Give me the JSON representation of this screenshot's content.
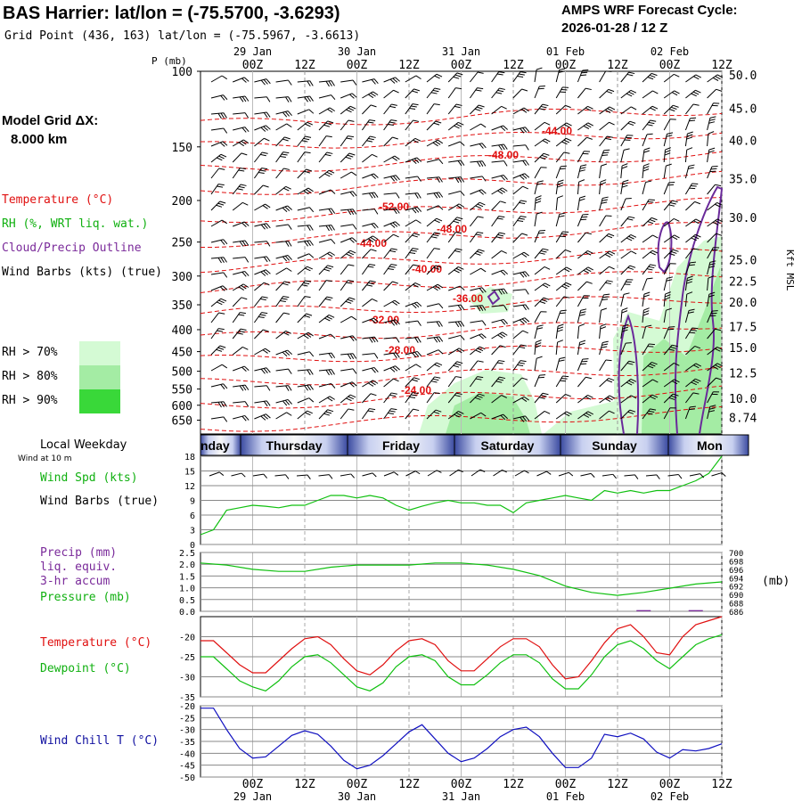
{
  "header": {
    "title": "BAS Harrier:  lat/lon = (-75.5700, -3.6293)",
    "subtitle": "Grid Point (436, 163) lat/lon = (-75.5967, -3.6613)",
    "cycle_line1": "AMPS WRF Forecast Cycle:",
    "cycle_line2": "2026-01-28 / 12  Z"
  },
  "time_axis": {
    "top_dates": [
      "29 Jan",
      "30 Jan",
      "31 Jan",
      "01 Feb",
      "02 Feb"
    ],
    "tick_labels": [
      "00Z",
      "12Z",
      "00Z",
      "12Z",
      "00Z",
      "12Z",
      "00Z",
      "12Z",
      "00Z",
      "12Z"
    ],
    "tick_hours": [
      12,
      24,
      36,
      48,
      60,
      72,
      84,
      96,
      108,
      120
    ],
    "hours_start": 0,
    "hours_end": 120
  },
  "upper_panel": {
    "p_label": "P (mb)",
    "pressure_ticks": [
      "100",
      "150",
      "200",
      "250",
      "300",
      "350",
      "400",
      "450",
      "500",
      "550",
      "600",
      "650"
    ],
    "pressure_values": [
      100,
      150,
      200,
      250,
      300,
      350,
      400,
      450,
      500,
      550,
      600,
      650
    ],
    "height_ticks": [
      "50.0",
      "45.0",
      "40.0",
      "35.0",
      "30.0",
      "25.0",
      "22.5",
      "20.0",
      "17.5",
      "15.0",
      "12.5",
      "10.0",
      "8.74"
    ],
    "height_pressures": [
      102,
      122,
      145,
      178,
      219,
      275,
      308,
      345,
      393,
      440,
      505,
      578,
      640
    ],
    "height_axis_label": "Kft MSL",
    "grid_label": "Model Grid ΔX:",
    "grid_value": "8.000 km",
    "legend_temperature": "Temperature (°C)",
    "legend_rh": "RH (%, WRT liq. wat.)",
    "legend_cloud": "Cloud/Precip Outline",
    "legend_wind": "Wind Barbs (kts) (true)",
    "rh_bins": [
      {
        "label": "RH > 70%",
        "color": "#d4fad4"
      },
      {
        "label": "RH > 80%",
        "color": "#a4eca4"
      },
      {
        "label": "RH > 90%",
        "color": "#39d839"
      }
    ],
    "temperature_labels": [
      "-52.00",
      "-48.00",
      "-48.00",
      "-44.00",
      "-44.00",
      "-40.00",
      "-36.00",
      "-32.00",
      "-28.00",
      "-24.00"
    ]
  },
  "weekday_bar": {
    "label": "Local Weekday",
    "wind_note": "Wind at 10 m",
    "days": [
      "nday",
      "Thursday",
      "Friday",
      "Saturday",
      "Sunday",
      "Mon"
    ]
  },
  "wind_panel": {
    "label1": "Wind Spd (kts)",
    "label2": "Wind Barbs (true)",
    "y_ticks": [
      "18",
      "15",
      "12",
      "9",
      "6",
      "3",
      "0"
    ]
  },
  "precip_panel": {
    "label1": "Precip (mm)",
    "label2": "liq. equiv.",
    "label3": "3-hr accum",
    "label4": "Pressure (mb)",
    "left_ticks": [
      "2.5",
      "2.0",
      "1.5",
      "1.0",
      "0.5",
      "0.0"
    ],
    "right_ticks": [
      "700",
      "698",
      "696",
      "694",
      "692",
      "690",
      "688",
      "686"
    ],
    "right_unit": "(mb)"
  },
  "temp_panel": {
    "label1": "Temperature (°C)",
    "label2": "Dewpoint (°C)",
    "y_ticks": [
      "-20",
      "-25",
      "-30",
      "-35"
    ]
  },
  "chill_panel": {
    "label": "Wind Chill T (°C)",
    "y_ticks": [
      "-20",
      "-25",
      "-30",
      "-35",
      "-40",
      "-45",
      "-50"
    ]
  },
  "colors": {
    "temperature": "#e01010",
    "dewpoint": "#10c010",
    "pressure": "#10c010",
    "wind_speed": "#10c010",
    "wind_chill": "#1010c0",
    "cloud_outline": "#6a2a9a",
    "precip_label": "#7a2a9a"
  },
  "chart_data": [
    {
      "type": "line",
      "title": "Wind Spd (kts)",
      "x_hours": [
        0,
        3,
        6,
        9,
        12,
        15,
        18,
        21,
        24,
        27,
        30,
        33,
        36,
        39,
        42,
        45,
        48,
        51,
        54,
        57,
        60,
        63,
        66,
        69,
        72,
        75,
        78,
        81,
        84,
        87,
        90,
        93,
        96,
        99,
        102,
        105,
        108,
        111,
        114,
        117,
        120
      ],
      "series": [
        {
          "name": "Wind Spd (kts)",
          "values": [
            2,
            3,
            7,
            7.5,
            8,
            7.8,
            7.5,
            8,
            8,
            9,
            10,
            10,
            9.5,
            10,
            9.5,
            8,
            7,
            7.8,
            8.5,
            9,
            8.5,
            8.5,
            8,
            8,
            6.5,
            8.5,
            9,
            9.5,
            10,
            9.5,
            9,
            11,
            10.5,
            11,
            10.5,
            11,
            11,
            12,
            13,
            14.5,
            18
          ]
        }
      ],
      "ylim": [
        0,
        18
      ]
    },
    {
      "type": "line",
      "title": "Pressure (mb)",
      "x_hours": [
        0,
        6,
        12,
        18,
        24,
        30,
        36,
        42,
        48,
        54,
        60,
        66,
        72,
        78,
        84,
        90,
        96,
        102,
        108,
        114,
        120
      ],
      "series": [
        {
          "name": "Pressure (mb)",
          "values": [
            697.5,
            697,
            696,
            695.5,
            695.5,
            696.5,
            697,
            697,
            697,
            697.5,
            697.5,
            697,
            696,
            694.5,
            692,
            690.5,
            689.8,
            690.5,
            691.5,
            692.5,
            693
          ]
        }
      ],
      "ylim": [
        686,
        700
      ],
      "precip_values": [
        0,
        0,
        0,
        0,
        0,
        0,
        0,
        0,
        0,
        0,
        0,
        0,
        0,
        0,
        0,
        0,
        0,
        0.05,
        0,
        0.05,
        0
      ],
      "precip_ylim": [
        0,
        2.5
      ]
    },
    {
      "type": "line",
      "title": "Temperature / Dewpoint",
      "x_hours": [
        0,
        3,
        6,
        9,
        12,
        15,
        18,
        21,
        24,
        27,
        30,
        33,
        36,
        39,
        42,
        45,
        48,
        51,
        54,
        57,
        60,
        63,
        66,
        69,
        72,
        75,
        78,
        81,
        84,
        87,
        90,
        93,
        96,
        99,
        102,
        105,
        108,
        111,
        114,
        117,
        120
      ],
      "series": [
        {
          "name": "Temperature (°C)",
          "values": [
            -21,
            -21,
            -24,
            -27,
            -29,
            -29,
            -26,
            -23,
            -20.5,
            -20,
            -22,
            -25.5,
            -28.5,
            -29.5,
            -27,
            -23.5,
            -21,
            -20.5,
            -22,
            -26,
            -28.5,
            -28.5,
            -25.5,
            -22.5,
            -20.5,
            -20.5,
            -22.5,
            -27,
            -30.5,
            -30,
            -26,
            -21.5,
            -18,
            -17,
            -20,
            -24,
            -24.5,
            -20,
            -17,
            -16,
            -15
          ]
        },
        {
          "name": "Dewpoint (°C)",
          "values": [
            -25,
            -25,
            -28,
            -31,
            -32.5,
            -33.5,
            -31,
            -27.5,
            -25,
            -24.5,
            -26.5,
            -29.5,
            -32.5,
            -33.5,
            -31.5,
            -27.5,
            -25,
            -24.5,
            -26,
            -30,
            -32,
            -32,
            -29.5,
            -26.5,
            -24.5,
            -24.5,
            -26.5,
            -30.5,
            -33,
            -33,
            -29.5,
            -25,
            -22,
            -21,
            -23,
            -26,
            -28,
            -25,
            -22,
            -20.5,
            -19.5
          ]
        }
      ],
      "ylim": [
        -35,
        -15
      ]
    },
    {
      "type": "line",
      "title": "Wind Chill T (°C)",
      "x_hours": [
        0,
        3,
        6,
        9,
        12,
        15,
        18,
        21,
        24,
        27,
        30,
        33,
        36,
        39,
        42,
        45,
        48,
        51,
        54,
        57,
        60,
        63,
        66,
        69,
        72,
        75,
        78,
        81,
        84,
        87,
        90,
        93,
        96,
        99,
        102,
        105,
        108,
        111,
        114,
        117,
        120
      ],
      "series": [
        {
          "name": "Wind Chill T (°C)",
          "values": [
            -21,
            -21,
            -30,
            -38,
            -42,
            -41.5,
            -37,
            -32.5,
            -30.5,
            -32,
            -37,
            -43,
            -46.5,
            -45,
            -41,
            -36,
            -31,
            -28,
            -34,
            -40,
            -43.5,
            -42,
            -38,
            -33,
            -30,
            -29,
            -33,
            -40,
            -46,
            -46,
            -42,
            -32,
            -33,
            -31.5,
            -34,
            -39.5,
            -42,
            -38.5,
            -39,
            -38,
            -36
          ]
        }
      ],
      "ylim": [
        -50,
        -20
      ]
    }
  ]
}
